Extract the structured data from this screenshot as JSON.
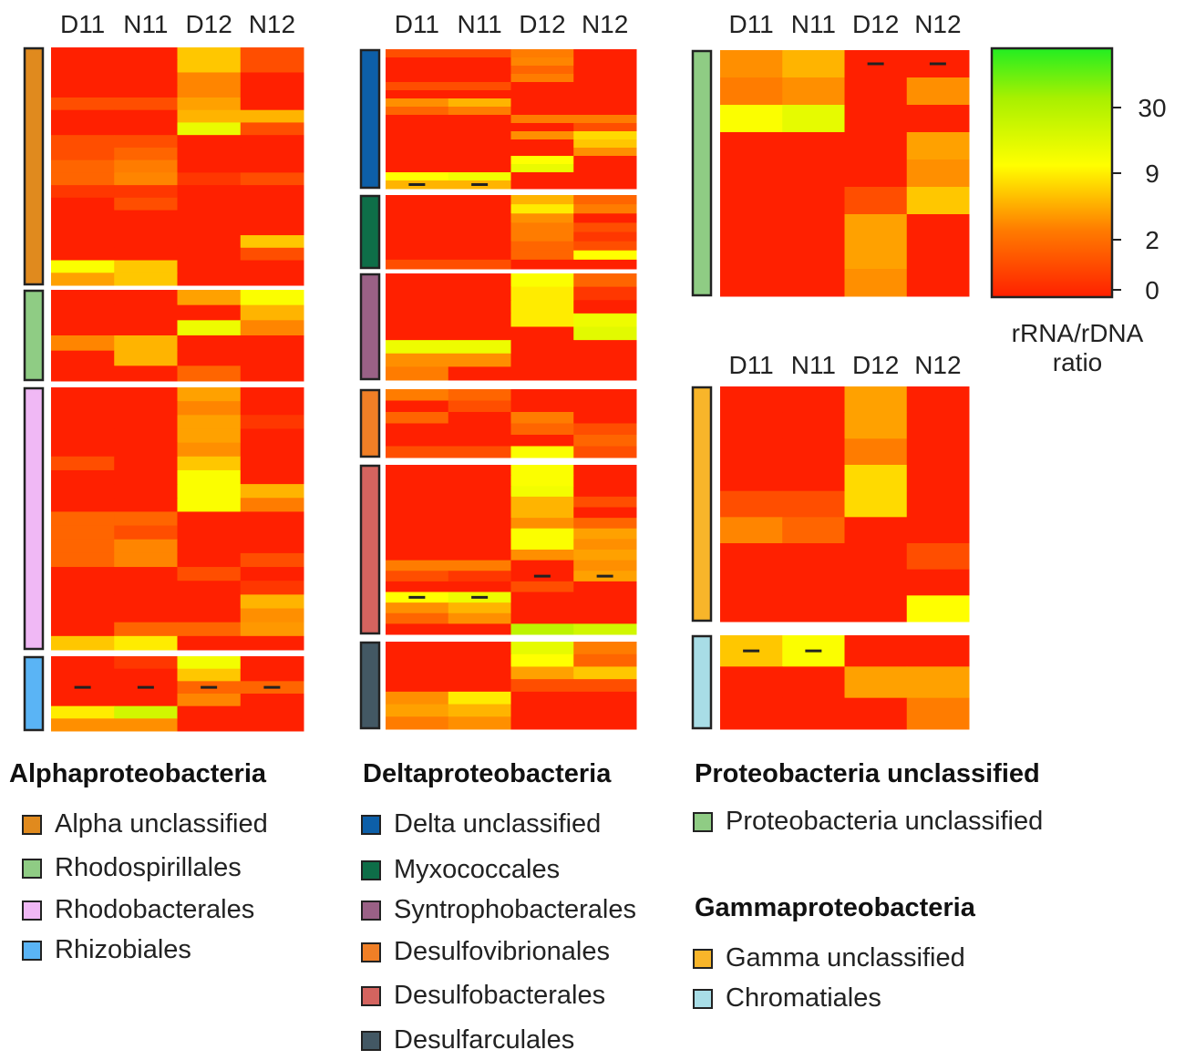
{
  "color_scale": {
    "stops": [
      [
        0,
        "#ff2000"
      ],
      [
        2,
        "#ff7c00"
      ],
      [
        9,
        "#ffff00"
      ],
      [
        30,
        "#a8f000"
      ],
      [
        60,
        "#22ee22"
      ]
    ],
    "ticks": [
      30,
      9,
      2,
      0
    ],
    "label_line1": "rRNA/rDNA",
    "label_line2": "ratio"
  },
  "chart_data": {
    "type": "heatmap",
    "columns": [
      "D11",
      "N11",
      "D12",
      "N12"
    ],
    "groups": [
      {
        "id": "alpha",
        "title": "Alphaproteobacteria",
        "blocks": [
          {
            "name": "Alpha unclassified",
            "color": "#e08a1e",
            "dashes": [],
            "rows": [
              [
                0,
                0,
                6,
                1
              ],
              [
                0,
                0,
                6,
                1
              ],
              [
                0,
                0,
                2.5,
                0
              ],
              [
                0,
                0,
                2.5,
                0
              ],
              [
                1,
                1,
                4,
                0
              ],
              [
                0,
                0,
                5,
                5
              ],
              [
                0,
                0,
                14,
                1
              ],
              [
                1,
                1,
                0,
                0
              ],
              [
                1,
                1.5,
                0,
                0
              ],
              [
                1.5,
                2,
                0,
                0
              ],
              [
                1.5,
                2.5,
                0.5,
                1
              ],
              [
                0.5,
                0.5,
                0,
                0
              ],
              [
                0,
                1,
                0,
                0
              ],
              [
                0,
                0,
                0,
                0
              ],
              [
                0,
                0,
                0,
                0
              ],
              [
                0,
                0,
                0,
                6
              ],
              [
                0,
                0,
                0,
                1
              ],
              [
                10,
                6,
                0,
                0
              ],
              [
                4,
                6,
                0,
                0
              ]
            ]
          },
          {
            "name": "Rhodospirillales",
            "color": "#8fcc84",
            "dashes": [],
            "rows": [
              [
                0,
                0,
                4,
                10
              ],
              [
                0,
                0,
                0,
                5
              ],
              [
                0,
                0,
                13,
                2.5
              ],
              [
                2.5,
                5,
                0,
                0
              ],
              [
                0,
                5,
                0,
                0
              ],
              [
                0,
                0,
                1.5,
                0
              ]
            ]
          },
          {
            "name": "Rhodobacterales",
            "color": "#f0b8f5",
            "dashes": [],
            "rows": [
              [
                0,
                0,
                4,
                0
              ],
              [
                0,
                0,
                2.5,
                0
              ],
              [
                0,
                0,
                4,
                0.5
              ],
              [
                0,
                0,
                4,
                0
              ],
              [
                0,
                0,
                3,
                0
              ],
              [
                1,
                0,
                6,
                0
              ],
              [
                0,
                0,
                10,
                0
              ],
              [
                0,
                0,
                10,
                5
              ],
              [
                0,
                0,
                10,
                2
              ],
              [
                1.5,
                1.5,
                0,
                0
              ],
              [
                1.5,
                1,
                0,
                0
              ],
              [
                1.5,
                2.5,
                0,
                0
              ],
              [
                1.5,
                2.5,
                0,
                1
              ],
              [
                0,
                0,
                1,
                0
              ],
              [
                0,
                0,
                0,
                0.5
              ],
              [
                0,
                0,
                0,
                5
              ],
              [
                0,
                0,
                0,
                3
              ],
              [
                0,
                1.5,
                1.5,
                3.5
              ],
              [
                6,
                8,
                0,
                0
              ]
            ]
          },
          {
            "name": "Rhizobiales",
            "color": "#5ab4f5",
            "dashes": [
              [
                2,
                0
              ],
              [
                2,
                1
              ],
              [
                2,
                2
              ],
              [
                2,
                3
              ]
            ],
            "rows": [
              [
                0,
                0.5,
                12,
                0
              ],
              [
                0,
                0,
                6,
                0
              ],
              [
                0,
                0,
                1.5,
                1.5
              ],
              [
                0,
                0,
                2.5,
                0
              ],
              [
                8,
                20,
                0,
                0
              ],
              [
                3,
                3,
                0,
                0
              ]
            ]
          }
        ]
      },
      {
        "id": "delta",
        "title": "Deltaproteobacteria",
        "blocks": [
          {
            "name": "Delta unclassified",
            "color": "#0d5fa8",
            "dashes": [
              [
                16,
                0
              ],
              [
                16,
                1
              ]
            ],
            "rows": [
              [
                1,
                1,
                2,
                0
              ],
              [
                0,
                0,
                2.5,
                0
              ],
              [
                0,
                0,
                1.5,
                0
              ],
              [
                0,
                0,
                2,
                0
              ],
              [
                1,
                1,
                0,
                0
              ],
              [
                0,
                0,
                0,
                0
              ],
              [
                3,
                5,
                0,
                0
              ],
              [
                1.5,
                2,
                0,
                0
              ],
              [
                0,
                0,
                2,
                2
              ],
              [
                0,
                0,
                0,
                1
              ],
              [
                0,
                0,
                3,
                7
              ],
              [
                0,
                0,
                0,
                6
              ],
              [
                0,
                0,
                0,
                3
              ],
              [
                0,
                0,
                9,
                0
              ],
              [
                0,
                0,
                14,
                0
              ],
              [
                9,
                12,
                0,
                0
              ],
              [
                5,
                5,
                0,
                0
              ]
            ]
          },
          {
            "name": "Myxococcales",
            "color": "#0e6e48",
            "dashes": [],
            "rows": [
              [
                0,
                0,
                5,
                1.5
              ],
              [
                0,
                0,
                8,
                2
              ],
              [
                0,
                0,
                3,
                0
              ],
              [
                0,
                0,
                2,
                1
              ],
              [
                0,
                0,
                2,
                0.5
              ],
              [
                0,
                0,
                1.5,
                1
              ],
              [
                0,
                0,
                1.5,
                9
              ],
              [
                1,
                1,
                0,
                0
              ]
            ]
          },
          {
            "name": "Syntrophobacterales",
            "color": "#9a6186",
            "dashes": [],
            "rows": [
              [
                0,
                0,
                10,
                1.5
              ],
              [
                0,
                0,
                8,
                0.5
              ],
              [
                0,
                0,
                8,
                0
              ],
              [
                0,
                0,
                8,
                13
              ],
              [
                0,
                0,
                0,
                16
              ],
              [
                13,
                13,
                0,
                0
              ],
              [
                3,
                3,
                0,
                0
              ],
              [
                2,
                0,
                0,
                0
              ]
            ]
          },
          {
            "name": "Desulfovibrionales",
            "color": "#f07f26",
            "dashes": [],
            "rows": [
              [
                2,
                1.5,
                0,
                0
              ],
              [
                0,
                1,
                0,
                0
              ],
              [
                1.5,
                0,
                2,
                0
              ],
              [
                0,
                0,
                1.5,
                1
              ],
              [
                0,
                0,
                0,
                1.5
              ],
              [
                1,
                1,
                10,
                1
              ]
            ]
          },
          {
            "name": "Desulfobacterales",
            "color": "#d4645f",
            "dashes": [
              [
                10,
                2
              ],
              [
                10,
                3
              ],
              [
                12,
                0
              ],
              [
                12,
                1
              ]
            ],
            "rows": [
              [
                0,
                0,
                10,
                0
              ],
              [
                0,
                0,
                10,
                0
              ],
              [
                0,
                0,
                12,
                0
              ],
              [
                0,
                0,
                5,
                1
              ],
              [
                0,
                0,
                5,
                0
              ],
              [
                0,
                0,
                3,
                1.5
              ],
              [
                0,
                0,
                10,
                4
              ],
              [
                0,
                0,
                10,
                3
              ],
              [
                0,
                0,
                3,
                4
              ],
              [
                2,
                2,
                0,
                3
              ],
              [
                1,
                0.5,
                0,
                4
              ],
              [
                0,
                0,
                1,
                0
              ],
              [
                9,
                13,
                0,
                0
              ],
              [
                3,
                5,
                0,
                0
              ],
              [
                1.5,
                3,
                0,
                0
              ],
              [
                0,
                0,
                25,
                20
              ]
            ]
          },
          {
            "name": "Desulfarculales",
            "color": "#435864",
            "dashes": [],
            "rows": [
              [
                0,
                0,
                15,
                2
              ],
              [
                0,
                0,
                9,
                1.5
              ],
              [
                0,
                0,
                4,
                6
              ],
              [
                0,
                0,
                1,
                1
              ],
              [
                3,
                8,
                0,
                0
              ],
              [
                4,
                5,
                0,
                0
              ],
              [
                2,
                3,
                0,
                0
              ]
            ]
          }
        ]
      },
      {
        "id": "proteo",
        "title": "Proteobacteria unclassified",
        "blocks": [
          {
            "name": "Proteobacteria unclassified",
            "color": "#8fcc84",
            "dashes": [
              [
                0,
                2
              ],
              [
                0,
                3
              ]
            ],
            "rows": [
              [
                3,
                5,
                0,
                0
              ],
              [
                2,
                3,
                0,
                3
              ],
              [
                10,
                15,
                0,
                0
              ],
              [
                0,
                0,
                0,
                4
              ],
              [
                0,
                0,
                0,
                3
              ],
              [
                0,
                0,
                1,
                6
              ],
              [
                0,
                0,
                4,
                0
              ],
              [
                0,
                0,
                4,
                0
              ],
              [
                0,
                0,
                3,
                0
              ]
            ]
          }
        ]
      },
      {
        "id": "gamma",
        "title": "Gammaproteobacteria",
        "blocks": [
          {
            "name": "Gamma unclassified",
            "color": "#f8b52a",
            "dashes": [],
            "rows": [
              [
                0,
                0,
                4,
                0
              ],
              [
                0,
                0,
                4,
                0
              ],
              [
                0,
                0,
                2,
                0
              ],
              [
                0,
                0,
                7,
                0
              ],
              [
                1,
                1,
                7,
                0
              ],
              [
                2.5,
                1.5,
                0,
                0
              ],
              [
                0,
                0,
                0,
                1
              ],
              [
                0,
                0,
                0,
                0
              ],
              [
                0,
                0,
                0,
                9
              ]
            ]
          },
          {
            "name": "Chromatiales",
            "color": "#a8dde6",
            "dashes": [
              [
                0,
                0
              ],
              [
                0,
                1
              ]
            ],
            "rows": [
              [
                6,
                10,
                0,
                0
              ],
              [
                0,
                0,
                4,
                4
              ],
              [
                0,
                0,
                0,
                2
              ]
            ]
          }
        ]
      }
    ]
  }
}
